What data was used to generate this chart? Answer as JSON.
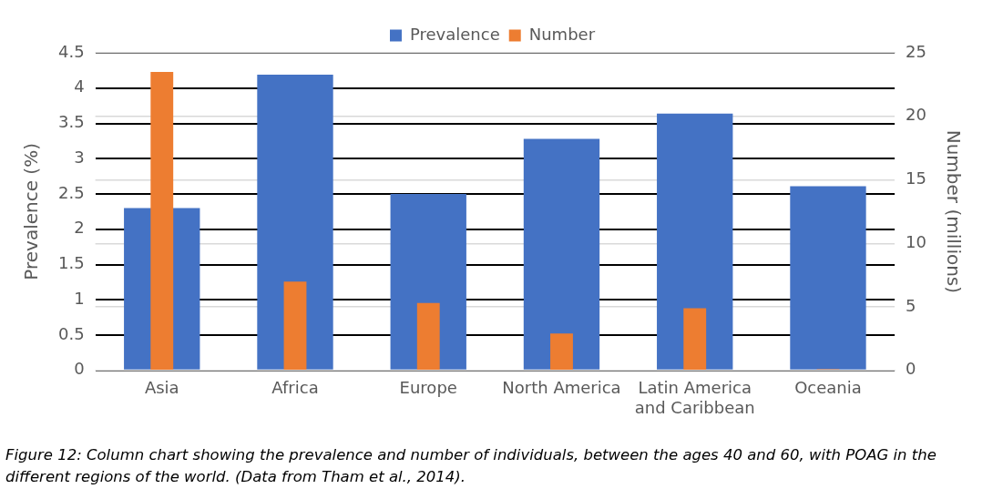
{
  "chart_data": {
    "type": "bar",
    "ylabel": "Prevalence (%)",
    "y2label": "Number (millions)",
    "categories": [
      "Asia",
      "Africa",
      "Europe",
      "North America",
      "Latin America and Caribbean",
      "Oceania"
    ],
    "series": [
      {
        "name": "Prevalence",
        "color": "#4472c4",
        "values": [
          2.3,
          4.19,
          2.5,
          3.28,
          3.64,
          2.61
        ]
      },
      {
        "name": "Number",
        "color": "#ed7d31",
        "axis": "y2",
        "values": [
          23.5,
          7.0,
          5.3,
          2.9,
          4.9,
          0.1
        ]
      }
    ],
    "ylim": [
      0,
      4.5
    ],
    "yticks": [
      0,
      0.5,
      1,
      1.5,
      2,
      2.5,
      3,
      3.5,
      4,
      4.5
    ],
    "y2lim": [
      0,
      25
    ],
    "y2ticks": [
      0,
      5,
      10,
      15,
      20,
      25
    ],
    "grid": true,
    "legend": "top",
    "annotations": [
      "Figure 12: Column chart showing the prevalence and number of individuals, between the ages 40 and 60, with POAG in the different regions of the world. (Data from Tham et al., 2014)."
    ]
  }
}
